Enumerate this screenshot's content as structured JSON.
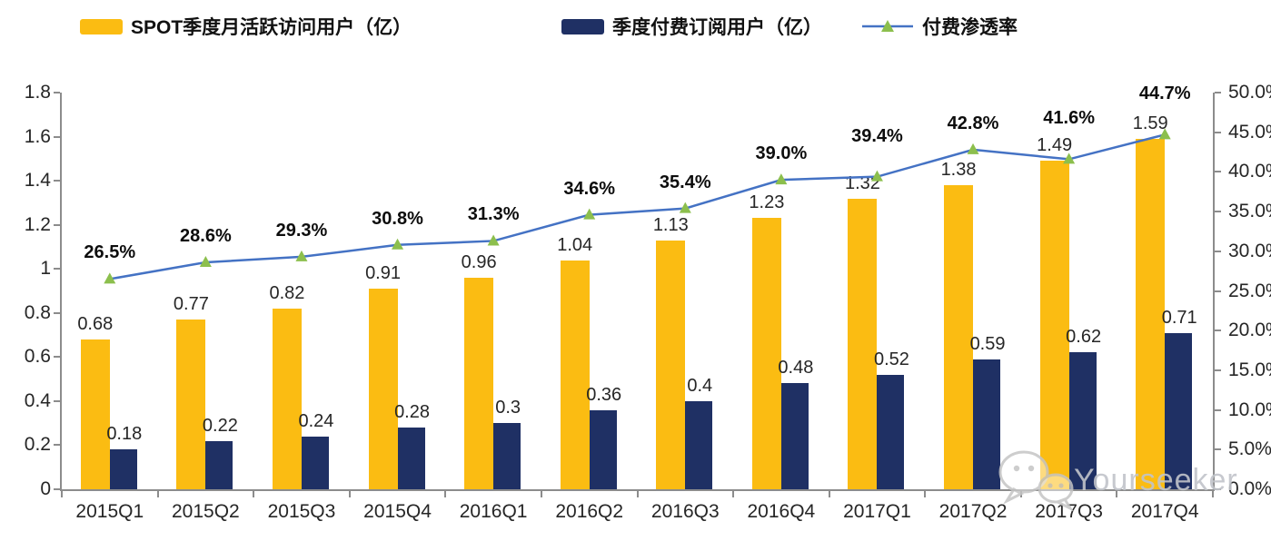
{
  "legend": [
    {
      "label": "SPOT季度月活跃访问用户（亿）",
      "type": "bar",
      "color": "#FBBC12"
    },
    {
      "label": "季度付费订阅用户（亿）",
      "type": "bar",
      "color": "#1F3064"
    },
    {
      "label": "付费渗透率",
      "type": "line",
      "color": "#4472C4",
      "marker_color": "#8CBF4D"
    }
  ],
  "chart_data": {
    "type": "bar+line",
    "legend_position": "top",
    "grid": false,
    "categories": [
      "2015Q1",
      "2015Q2",
      "2015Q3",
      "2015Q4",
      "2016Q1",
      "2016Q2",
      "2016Q3",
      "2016Q4",
      "2017Q1",
      "2017Q2",
      "2017Q3",
      "2017Q4"
    ],
    "series": [
      {
        "name": "SPOT季度月活跃访问用户（亿）",
        "type": "bar",
        "axis": "left",
        "color": "#FBBC12",
        "values": [
          0.68,
          0.77,
          0.82,
          0.91,
          0.96,
          1.04,
          1.13,
          1.23,
          1.32,
          1.38,
          1.49,
          1.59
        ],
        "labels": [
          "0.68",
          "0.77",
          "0.82",
          "0.91",
          "0.96",
          "1.04",
          "1.13",
          "1.23",
          "1.32",
          "1.38",
          "1.49",
          "1.59"
        ]
      },
      {
        "name": "季度付费订阅用户（亿）",
        "type": "bar",
        "axis": "left",
        "color": "#1F3064",
        "values": [
          0.18,
          0.22,
          0.24,
          0.28,
          0.3,
          0.36,
          0.4,
          0.48,
          0.52,
          0.59,
          0.62,
          0.71
        ],
        "labels": [
          "0.18",
          "0.22",
          "0.24",
          "0.28",
          "0.3",
          "0.36",
          "0.4",
          "0.48",
          "0.52",
          "0.59",
          "0.62",
          "0.71"
        ]
      },
      {
        "name": "付费渗透率",
        "type": "line",
        "axis": "right",
        "color": "#4472C4",
        "marker": "triangle-up",
        "marker_color": "#8CBF4D",
        "values": [
          26.5,
          28.6,
          29.3,
          30.8,
          31.3,
          34.6,
          35.4,
          39.0,
          39.4,
          42.8,
          41.6,
          44.7
        ],
        "labels": [
          "26.5%",
          "28.6%",
          "29.3%",
          "30.8%",
          "31.3%",
          "34.6%",
          "35.4%",
          "39.0%",
          "39.4%",
          "42.8%",
          "41.6%",
          "44.7%"
        ]
      }
    ],
    "left_axis": {
      "min": 0,
      "max": 1.8,
      "ticks": [
        {
          "label": "1.8",
          "v": 1.8
        },
        {
          "label": "1.6",
          "v": 1.6
        },
        {
          "label": "1.4",
          "v": 1.4
        },
        {
          "label": "1.2",
          "v": 1.2
        },
        {
          "label": "1",
          "v": 1
        },
        {
          "label": "0.8",
          "v": 0.8
        },
        {
          "label": "0.6",
          "v": 0.6
        },
        {
          "label": "0.4",
          "v": 0.4
        },
        {
          "label": "0.2",
          "v": 0.2
        },
        {
          "label": "0",
          "v": 0
        }
      ]
    },
    "right_axis": {
      "min": 0,
      "max": 50,
      "ticks": [
        {
          "label": "50.0%",
          "v": 50
        },
        {
          "label": "45.0%",
          "v": 45
        },
        {
          "label": "40.0%",
          "v": 40
        },
        {
          "label": "35.0%",
          "v": 35
        },
        {
          "label": "30.0%",
          "v": 30
        },
        {
          "label": "25.0%",
          "v": 25
        },
        {
          "label": "20.0%",
          "v": 20
        },
        {
          "label": "15.0%",
          "v": 15
        },
        {
          "label": "10.0%",
          "v": 10
        },
        {
          "label": "5.0%",
          "v": 5
        },
        {
          "label": "0.0%",
          "v": 0
        }
      ]
    }
  },
  "watermark": {
    "text": "Yourseeker",
    "icon": "wechat-icon"
  }
}
